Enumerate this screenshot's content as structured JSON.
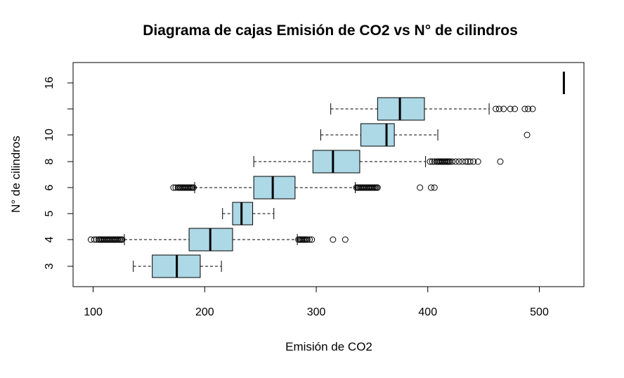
{
  "chart_data": {
    "type": "boxplot",
    "orientation": "horizontal",
    "title": "Diagrama de cajas Emisión de CO2 vs N° de cilindros",
    "xlabel": "Emisión de CO2",
    "ylabel": "N° de cilindros",
    "xlim": [
      82,
      540
    ],
    "x_ticks": [
      100,
      200,
      300,
      400,
      500
    ],
    "box_fill": "#add8e6",
    "grid": false,
    "legend": "none",
    "groups": [
      {
        "label": "3",
        "whisker_low": 136,
        "q1": 153,
        "median": 175,
        "q3": 196,
        "whisker_high": 215,
        "outliers": []
      },
      {
        "label": "4",
        "whisker_low": 128,
        "q1": 186,
        "median": 205,
        "q3": 225,
        "whisker_high": 283,
        "outliers": [
          98,
          101,
          103,
          105,
          106,
          107,
          108,
          109,
          110,
          111,
          112,
          113,
          114,
          115,
          116,
          117,
          118,
          119,
          120,
          121,
          122,
          123,
          124,
          125,
          126,
          284,
          285,
          286,
          287,
          288,
          289,
          290,
          291,
          292,
          294,
          296,
          315,
          326
        ]
      },
      {
        "label": "5",
        "whisker_low": 216,
        "q1": 225,
        "median": 233,
        "q3": 243,
        "whisker_high": 262,
        "outliers": []
      },
      {
        "label": "6",
        "whisker_low": 191,
        "q1": 244,
        "median": 261,
        "q3": 281,
        "whisker_high": 335,
        "outliers": [
          172,
          174,
          176,
          177,
          178,
          179,
          180,
          181,
          182,
          183,
          184,
          185,
          186,
          187,
          188,
          189,
          190,
          336,
          337,
          338,
          339,
          340,
          341,
          342,
          343,
          344,
          345,
          346,
          347,
          348,
          349,
          350,
          351,
          352,
          353,
          354,
          355,
          393,
          403,
          406
        ]
      },
      {
        "label": "8",
        "whisker_low": 244,
        "q1": 297,
        "median": 315,
        "q3": 339,
        "whisker_high": 398,
        "outliers": [
          402,
          404,
          406,
          408,
          409,
          410,
          411,
          412,
          413,
          414,
          415,
          416,
          417,
          418,
          419,
          420,
          422,
          425,
          428,
          431,
          434,
          436,
          438,
          441,
          445,
          465
        ]
      },
      {
        "label": "10",
        "whisker_low": 304,
        "q1": 340,
        "median": 363,
        "q3": 370,
        "whisker_high": 409,
        "outliers": [
          489
        ]
      },
      {
        "label": "",
        "whisker_low": 313,
        "q1": 355,
        "median": 375,
        "q3": 397,
        "whisker_high": 455,
        "outliers": [
          461,
          464,
          468,
          474,
          478,
          487,
          490,
          494
        ]
      },
      {
        "label": "16",
        "whisker_low": 522,
        "q1": 522,
        "median": 522,
        "q3": 522,
        "whisker_high": 522,
        "outliers": []
      }
    ]
  }
}
